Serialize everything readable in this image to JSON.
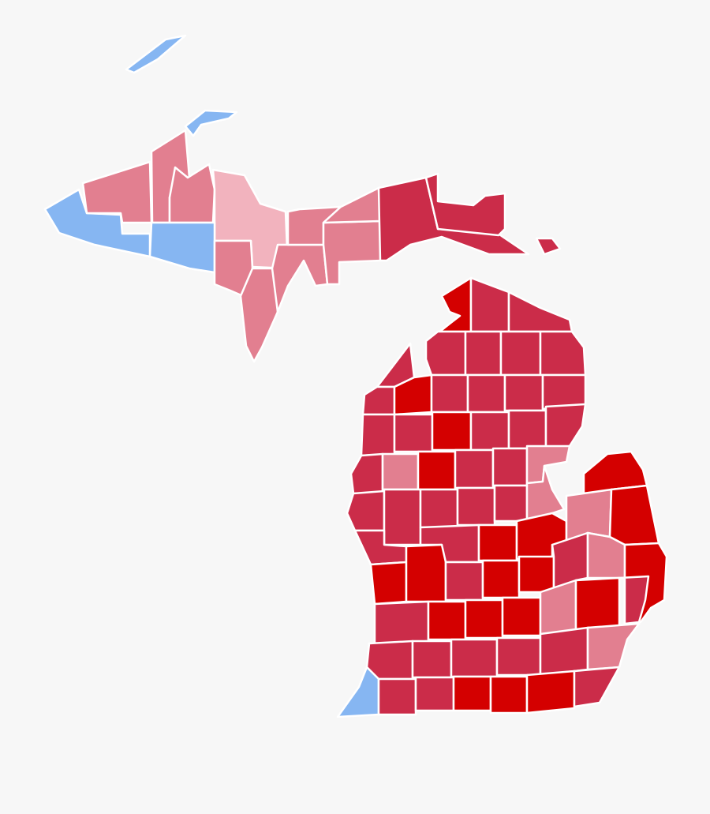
{
  "map": {
    "background": "#f7f7f7",
    "border_color": "#ffffff",
    "colors": {
      "D": "#d40000",
      "M": "#cb2c49",
      "L": "#e27f90",
      "P": "#f2b3be",
      "B": "#86b6f2"
    },
    "counties": [
      "B",
      "B",
      "B",
      "L",
      "L",
      "L",
      "P",
      "B",
      "L",
      "L",
      "L",
      "L",
      "L",
      "L",
      "M",
      "M",
      "M",
      "D",
      "M",
      "M",
      "M",
      "M",
      "M",
      "M",
      "M",
      "M",
      "D",
      "M",
      "M",
      "M",
      "M",
      "M",
      "M",
      "D",
      "M",
      "M",
      "M",
      "M",
      "L",
      "D",
      "M",
      "M",
      "L",
      "M",
      "M",
      "M",
      "M",
      "M",
      "L",
      "D",
      "M",
      "M",
      "D",
      "D",
      "L",
      "D",
      "D",
      "D",
      "M",
      "D",
      "D",
      "M",
      "L",
      "D",
      "M",
      "D",
      "D",
      "D",
      "L",
      "D",
      "M",
      "M",
      "M",
      "M",
      "M",
      "M",
      "L",
      "B",
      "M",
      "M",
      "D",
      "D",
      "D",
      "M",
      "L"
    ]
  }
}
